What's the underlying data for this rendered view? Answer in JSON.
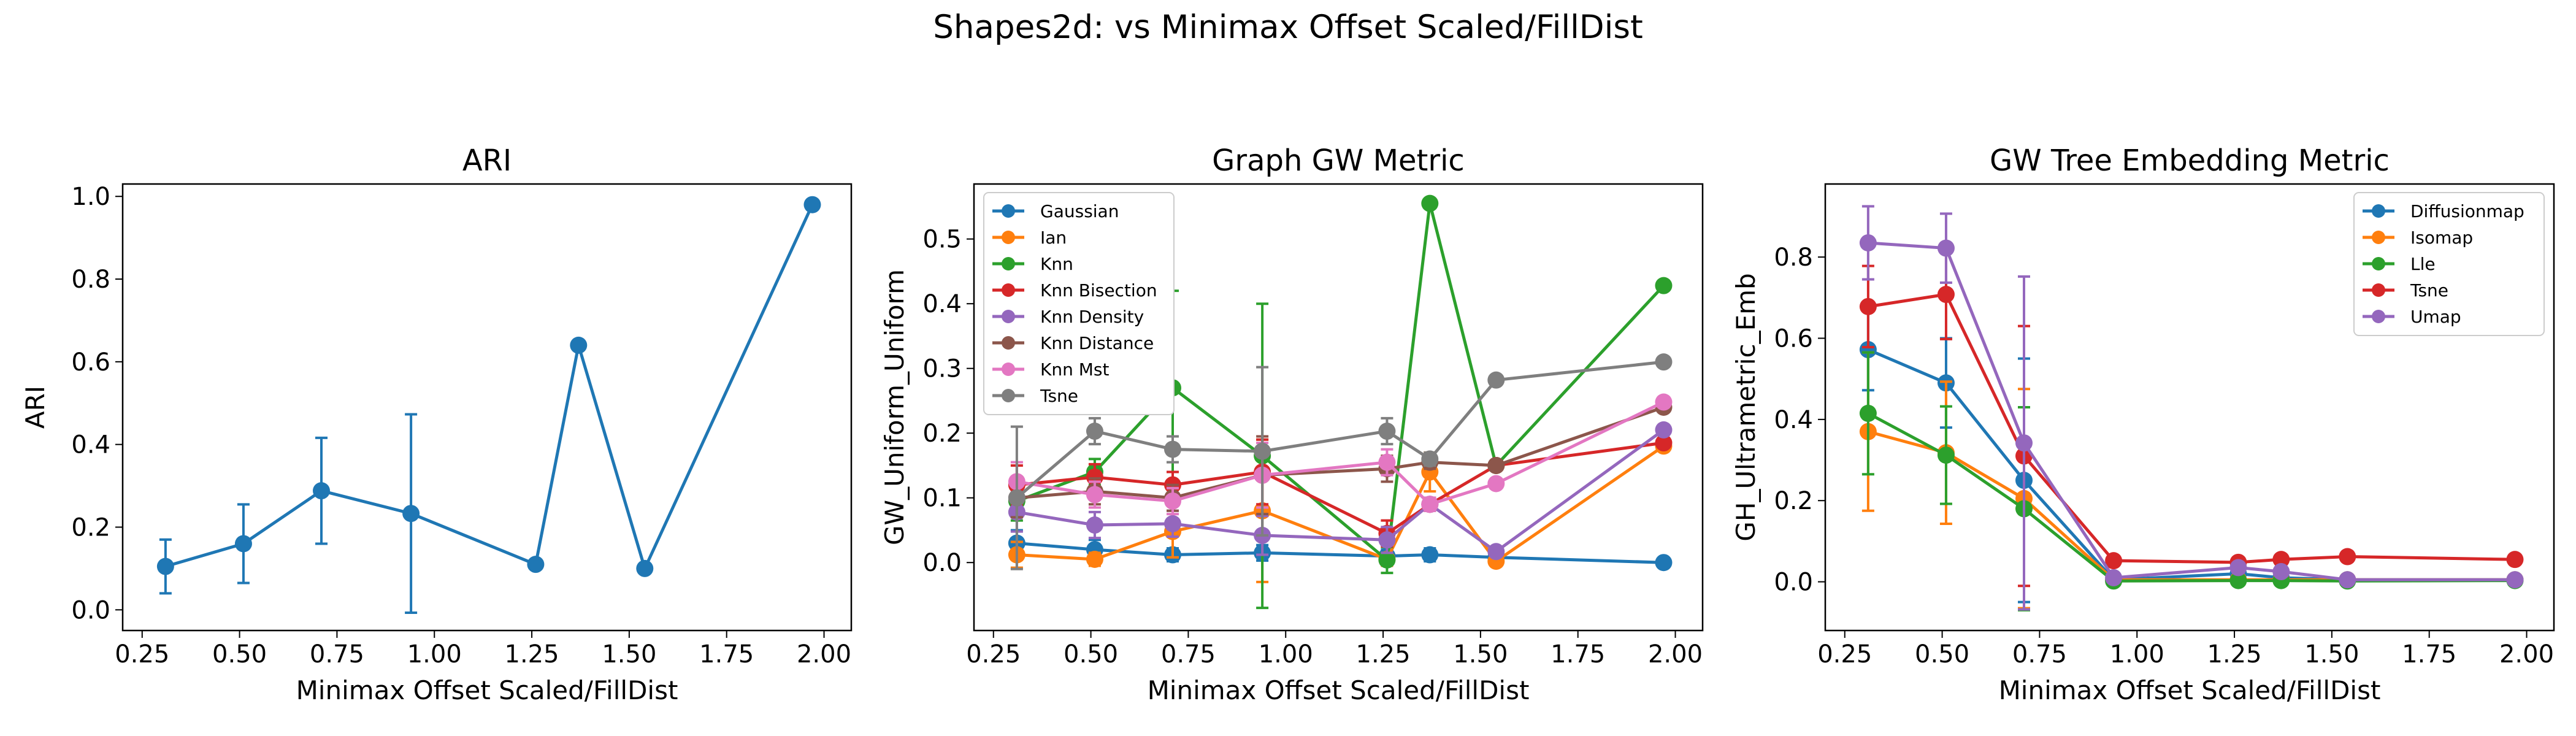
{
  "figure": {
    "title": "Shapes2d: vs Minimax Offset Scaled/FillDist"
  },
  "chart_data": [
    {
      "type": "line",
      "title": "ARI",
      "xlabel": "Minimax Offset Scaled/FillDist",
      "ylabel": "ARI",
      "xlim": [
        0.2,
        2.07
      ],
      "ylim": [
        -0.05,
        1.03
      ],
      "x_ticks": [
        "0.25",
        "0.50",
        "0.75",
        "1.00",
        "1.25",
        "1.50",
        "1.75",
        "2.00"
      ],
      "y_ticks": [
        "0.0",
        "0.2",
        "0.4",
        "0.6",
        "0.8",
        "1.0"
      ],
      "grid": false,
      "legend": "none",
      "x": [
        0.31,
        0.51,
        0.71,
        0.94,
        1.26,
        1.37,
        1.54,
        1.97
      ],
      "series": [
        {
          "color": "#1f77b4",
          "values": [
            0.105,
            0.16,
            0.288,
            0.233,
            0.11,
            0.64,
            0.1,
            0.98
          ],
          "errors": [
            0.065,
            0.095,
            0.128,
            0.24,
            0.0,
            0.0,
            0.0,
            0.0
          ]
        }
      ]
    },
    {
      "type": "line",
      "title": "Graph GW Metric",
      "xlabel": "Minimax Offset Scaled/FillDist",
      "ylabel": "GW_Uniform_Uniform",
      "xlim": [
        0.2,
        2.07
      ],
      "ylim": [
        -0.105,
        0.585
      ],
      "x_ticks": [
        "0.25",
        "0.50",
        "0.75",
        "1.00",
        "1.25",
        "1.50",
        "1.75",
        "2.00"
      ],
      "y_ticks": [
        "0.0",
        "0.1",
        "0.2",
        "0.3",
        "0.4",
        "0.5"
      ],
      "grid": false,
      "legend": "top-left",
      "x": [
        0.31,
        0.51,
        0.71,
        0.94,
        1.26,
        1.37,
        1.54,
        1.97
      ],
      "series": [
        {
          "name": "Gaussian",
          "color": "#1f77b4",
          "values": [
            0.03,
            0.02,
            0.012,
            0.015,
            0.01,
            0.012,
            0.008,
            0.0
          ],
          "errors": [
            0.02,
            0.015,
            0.01,
            0.012,
            0.01,
            0.01,
            0.008,
            0.0
          ]
        },
        {
          "name": "Ian",
          "color": "#ff7f0e",
          "values": [
            0.012,
            0.005,
            0.048,
            0.08,
            0.005,
            0.14,
            0.002,
            0.18
          ],
          "errors": [
            0.02,
            0.01,
            0.04,
            0.11,
            0.01,
            0.03,
            0.005,
            0.0
          ]
        },
        {
          "name": "Knn",
          "color": "#2ca02c",
          "values": [
            0.095,
            0.14,
            0.27,
            0.165,
            0.004,
            0.555,
            0.15,
            0.428
          ],
          "errors": [
            0.03,
            0.02,
            0.15,
            0.235,
            0.02,
            0.0,
            0.0,
            0.0
          ]
        },
        {
          "name": "Knn Bisection",
          "color": "#d62728",
          "values": [
            0.12,
            0.132,
            0.12,
            0.14,
            0.045,
            0.09,
            0.15,
            0.185
          ],
          "errors": [
            0.03,
            0.02,
            0.02,
            0.05,
            0.02,
            0.01,
            0.0,
            0.0
          ]
        },
        {
          "name": "Knn Density",
          "color": "#9467bd",
          "values": [
            0.078,
            0.058,
            0.06,
            0.042,
            0.035,
            0.09,
            0.017,
            0.205
          ],
          "errors": [
            0.03,
            0.02,
            0.02,
            0.03,
            0.02,
            0.01,
            0.0,
            0.0
          ]
        },
        {
          "name": "Knn Distance",
          "color": "#8c564b",
          "values": [
            0.1,
            0.11,
            0.1,
            0.135,
            0.145,
            0.155,
            0.15,
            0.24
          ],
          "errors": [
            0.03,
            0.02,
            0.02,
            0.06,
            0.02,
            0.01,
            0.0,
            0.0
          ]
        },
        {
          "name": "Knn Mst",
          "color": "#e377c2",
          "values": [
            0.125,
            0.105,
            0.095,
            0.135,
            0.155,
            0.09,
            0.122,
            0.248
          ],
          "errors": [
            0.03,
            0.02,
            0.02,
            0.05,
            0.02,
            0.01,
            0.0,
            0.0
          ]
        },
        {
          "name": "Tsne",
          "color": "#7f7f7f",
          "values": [
            0.1,
            0.203,
            0.175,
            0.172,
            0.203,
            0.16,
            0.282,
            0.31
          ],
          "errors": [
            0.11,
            0.02,
            0.02,
            0.13,
            0.02,
            0.01,
            0.0,
            0.0
          ]
        }
      ]
    },
    {
      "type": "line",
      "title": "GW Tree Embedding Metric",
      "xlabel": "Minimax Offset Scaled/FillDist",
      "ylabel": "GH_Ultrametric_Emb",
      "xlim": [
        0.2,
        2.07
      ],
      "ylim": [
        -0.12,
        0.98
      ],
      "x_ticks": [
        "0.25",
        "0.50",
        "0.75",
        "1.00",
        "1.25",
        "1.50",
        "1.75",
        "2.00"
      ],
      "y_ticks": [
        "0.0",
        "0.2",
        "0.4",
        "0.6",
        "0.8"
      ],
      "grid": false,
      "legend": "top-right",
      "x": [
        0.31,
        0.51,
        0.71,
        0.94,
        1.26,
        1.37,
        1.54,
        1.97
      ],
      "series": [
        {
          "name": "Diffusionmap",
          "color": "#1f77b4",
          "values": [
            0.572,
            0.49,
            0.25,
            0.005,
            0.02,
            0.01,
            0.005,
            0.005
          ],
          "errors": [
            0.1,
            0.11,
            0.3,
            0.005,
            0.005,
            0.005,
            0.0,
            0.0
          ]
        },
        {
          "name": "Isomap",
          "color": "#ff7f0e",
          "values": [
            0.37,
            0.318,
            0.205,
            0.005,
            0.005,
            0.005,
            0.005,
            0.005
          ],
          "errors": [
            0.195,
            0.175,
            0.27,
            0.005,
            0.005,
            0.005,
            0.0,
            0.0
          ]
        },
        {
          "name": "Lle",
          "color": "#2ca02c",
          "values": [
            0.415,
            0.312,
            0.18,
            0.002,
            0.003,
            0.003,
            0.002,
            0.003
          ],
          "errors": [
            0.15,
            0.12,
            0.25,
            0.005,
            0.005,
            0.005,
            0.0,
            0.0
          ]
        },
        {
          "name": "Tsne",
          "color": "#d62728",
          "values": [
            0.678,
            0.708,
            0.31,
            0.052,
            0.048,
            0.055,
            0.062,
            0.055
          ],
          "errors": [
            0.1,
            0.11,
            0.32,
            0.005,
            0.005,
            0.005,
            0.0,
            0.0
          ]
        },
        {
          "name": "Umap",
          "color": "#9467bd",
          "values": [
            0.835,
            0.822,
            0.342,
            0.01,
            0.035,
            0.025,
            0.005,
            0.005
          ],
          "errors": [
            0.09,
            0.085,
            0.41,
            0.005,
            0.005,
            0.005,
            0.0,
            0.0
          ]
        }
      ]
    }
  ]
}
